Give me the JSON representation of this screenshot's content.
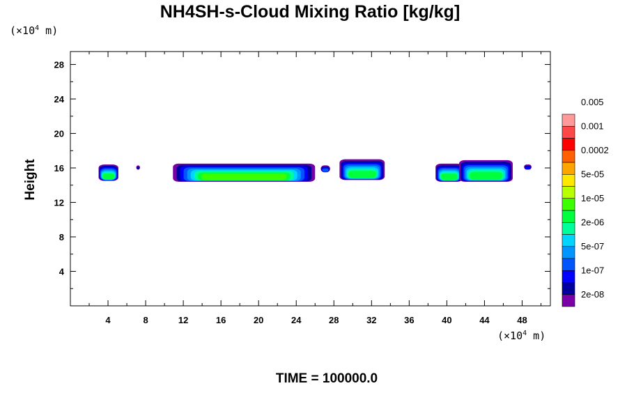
{
  "chart_data": {
    "type": "heatmap",
    "title": "NH4SH-s-Cloud Mixing Ratio [kg/kg]",
    "ylabel": "Height",
    "y_unit_text": "(×10",
    "x_unit_text": "(×10",
    "unit_exponent": "4",
    "unit_suffix": " m)",
    "footer": "TIME = 100000.0",
    "xlim": [
      0,
      51
    ],
    "ylim": [
      0,
      29.5
    ],
    "xticks": [
      4,
      8,
      12,
      16,
      20,
      24,
      28,
      32,
      36,
      40,
      44,
      48
    ],
    "yticks": [
      4,
      8,
      12,
      16,
      20,
      24,
      28
    ],
    "colorbar": {
      "colors": [
        "#7a00a8",
        "#00009e",
        "#0000ff",
        "#0055ff",
        "#0095ff",
        "#00d5ff",
        "#00ff9a",
        "#00ff3c",
        "#3cff00",
        "#b8ff00",
        "#ffe800",
        "#ffa500",
        "#ff6000",
        "#ff0000",
        "#ff4848",
        "#ff9a9a"
      ],
      "labels": [
        "2e-08",
        "1e-07",
        "5e-07",
        "2e-06",
        "1e-05",
        "5e-05",
        "0.0002",
        "0.001",
        "0.005"
      ]
    },
    "cloud_regions": [
      {
        "x_range": [
          3.0,
          5.1
        ],
        "y_range": [
          14.5,
          16.4
        ],
        "peak_level": 7
      },
      {
        "x_range": [
          7.0,
          7.4
        ],
        "y_range": [
          15.8,
          16.3
        ],
        "peak_level": 1
      },
      {
        "x_range": [
          10.9,
          26.0
        ],
        "y_range": [
          14.4,
          16.5
        ],
        "peak_level": 8
      },
      {
        "x_range": [
          26.6,
          27.6
        ],
        "y_range": [
          15.5,
          16.3
        ],
        "peak_level": 3
      },
      {
        "x_range": [
          28.6,
          33.4
        ],
        "y_range": [
          14.6,
          17.0
        ],
        "peak_level": 7
      },
      {
        "x_range": [
          38.8,
          41.7
        ],
        "y_range": [
          14.4,
          16.5
        ],
        "peak_level": 7
      },
      {
        "x_range": [
          41.3,
          47.0
        ],
        "y_range": [
          14.4,
          16.9
        ],
        "peak_level": 7
      },
      {
        "x_range": [
          48.2,
          49.0
        ],
        "y_range": [
          15.8,
          16.4
        ],
        "peak_level": 2
      }
    ]
  }
}
